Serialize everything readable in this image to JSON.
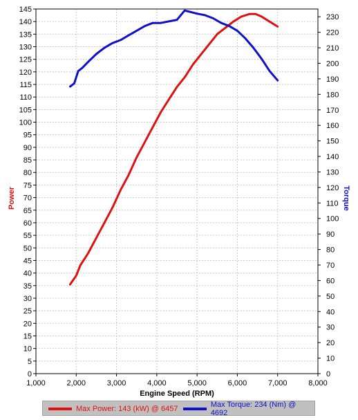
{
  "chart_data": {
    "type": "line",
    "xlabel": "Engine Speed (RPM)",
    "ylabel_left": "Power",
    "ylabel_right": "Torque",
    "xlim": [
      1000,
      8000
    ],
    "ylim_left": [
      0,
      145
    ],
    "ylim_right": [
      0,
      235
    ],
    "x_ticks": [
      {
        "value": 1000,
        "label": "1,000"
      },
      {
        "value": 2000,
        "label": "2,000"
      },
      {
        "value": 3000,
        "label": "3,000"
      },
      {
        "value": 4000,
        "label": "4,000"
      },
      {
        "value": 5000,
        "label": "5,000"
      },
      {
        "value": 6000,
        "label": "6,000"
      },
      {
        "value": 7000,
        "label": "7,000"
      },
      {
        "value": 8000,
        "label": "8,000"
      }
    ],
    "y_left_ticks": [
      0,
      5,
      10,
      15,
      20,
      25,
      30,
      35,
      40,
      45,
      50,
      55,
      60,
      65,
      70,
      75,
      80,
      85,
      90,
      95,
      100,
      105,
      110,
      115,
      120,
      125,
      130,
      135,
      140,
      145
    ],
    "y_right_ticks": [
      0,
      10,
      20,
      30,
      40,
      50,
      60,
      70,
      80,
      90,
      100,
      110,
      120,
      130,
      140,
      150,
      160,
      170,
      180,
      190,
      200,
      210,
      220,
      230
    ],
    "grid": true,
    "legend_position": "bottom",
    "colors": {
      "power": "#e01010",
      "torque": "#1010c8",
      "grid": "#c8c8c8",
      "legend_bg": "#c0c0c0"
    },
    "series": [
      {
        "name": "Power",
        "axis": "left",
        "legend": "Max Power: 143 (kW) @ 6457",
        "x": [
          1850,
          2000,
          2100,
          2300,
          2500,
          2700,
          2900,
          3100,
          3300,
          3500,
          3700,
          3900,
          4100,
          4300,
          4500,
          4700,
          4900,
          5100,
          5300,
          5500,
          5700,
          5900,
          6100,
          6300,
          6450,
          6600,
          6750,
          6900,
          7000
        ],
        "values": [
          35.5,
          39,
          43,
          48,
          54,
          60,
          66,
          73,
          79,
          86,
          92,
          98,
          104,
          109,
          114,
          118,
          123,
          127,
          131,
          135,
          137.5,
          140,
          142,
          143,
          143,
          142,
          140.5,
          139,
          138
        ]
      },
      {
        "name": "Torque",
        "axis": "right",
        "legend": "Max Torque: 234 (Nm) @ 4692",
        "x": [
          1850,
          1950,
          2050,
          2150,
          2300,
          2500,
          2700,
          2900,
          3100,
          3300,
          3500,
          3700,
          3900,
          4100,
          4300,
          4500,
          4692,
          4850,
          5000,
          5200,
          5400,
          5600,
          5800,
          6000,
          6200,
          6400,
          6600,
          6800,
          7000
        ],
        "values": [
          185,
          187,
          195,
          197,
          201,
          206,
          210,
          213,
          215,
          218,
          221,
          224,
          226,
          226,
          227,
          228,
          234,
          233,
          232,
          231,
          229,
          226,
          224,
          221,
          216,
          210,
          203,
          195,
          189
        ]
      }
    ]
  }
}
